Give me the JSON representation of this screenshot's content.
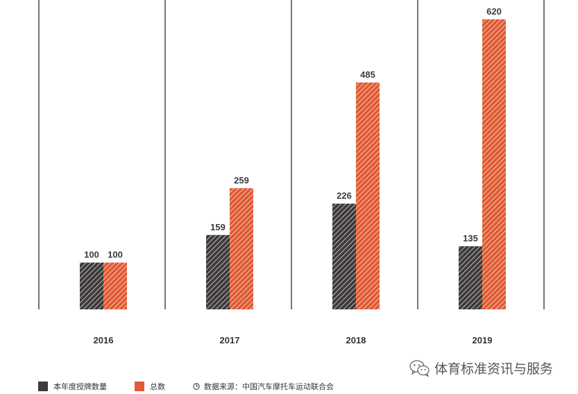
{
  "chart_data": {
    "type": "bar",
    "categories": [
      "2016",
      "2017",
      "2018",
      "2019"
    ],
    "series": [
      {
        "name": "本年度授牌数量",
        "values": [
          100,
          159,
          226,
          135
        ],
        "color": "#3d3a39",
        "pattern": "diagonal-hatch"
      },
      {
        "name": "总数",
        "values": [
          100,
          259,
          485,
          620
        ],
        "color": "#e05a33",
        "pattern": "diagonal-hatch"
      }
    ],
    "ylim": [
      0,
      650
    ],
    "grid": false,
    "legend_position": "bottom-left"
  },
  "legend": {
    "series1_label": "本年度授牌数量",
    "series2_label": "总数",
    "source": "数据来源：中国汽车摩托车运动联合会"
  },
  "watermark": {
    "text": "体育标准资讯与服务",
    "icon": "wechat-icon"
  }
}
